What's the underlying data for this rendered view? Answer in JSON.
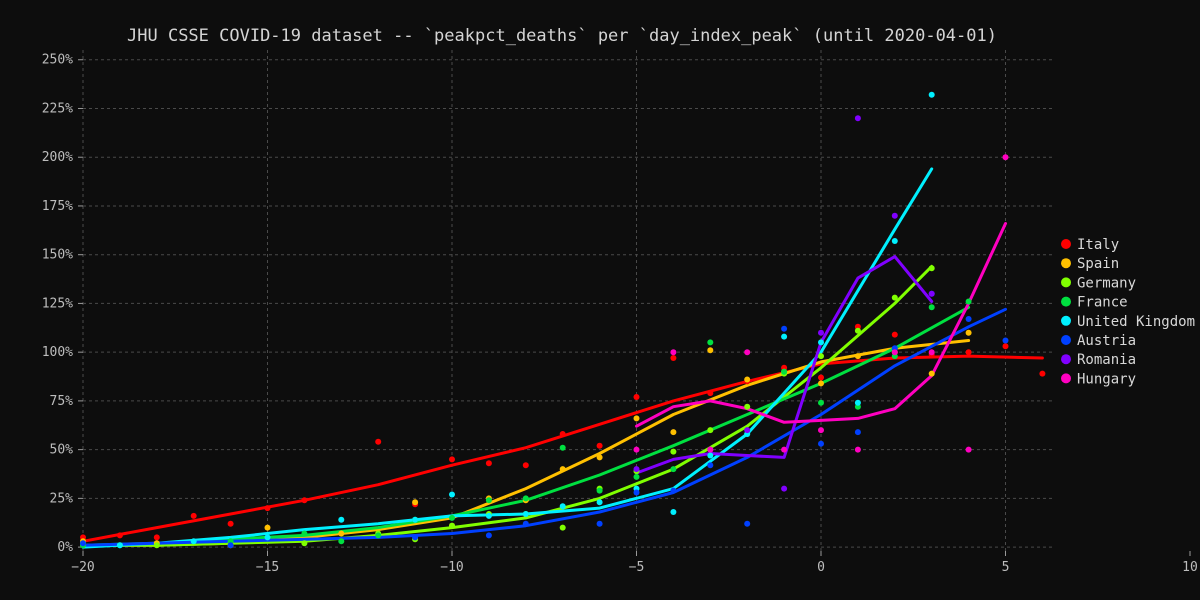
{
  "chart_data": {
    "type": "scatter",
    "title": "JHU CSSE COVID-19 dataset -- `peakpct_deaths` per `day_index_peak` (until 2020-04-01)",
    "xlabel": "",
    "ylabel": "",
    "xlim": [
      -20,
      10
    ],
    "ylim": [
      -2,
      255
    ],
    "x_ticks": [
      -20,
      -15,
      -10,
      -5,
      0,
      5,
      10
    ],
    "x_tick_labels": [
      "−20",
      "−15",
      "−10",
      "−5",
      "0",
      "5",
      "10"
    ],
    "y_ticks": [
      0,
      25,
      50,
      75,
      100,
      125,
      150,
      175,
      200,
      225,
      250
    ],
    "y_tick_labels": [
      "0%",
      "25%",
      "50%",
      "75%",
      "100%",
      "125%",
      "150%",
      "175%",
      "200%",
      "225%",
      "250%"
    ],
    "grid": true,
    "legend_position": "right",
    "series": [
      {
        "name": "Italy",
        "color": "#ff0000",
        "points": [
          [
            -20,
            5
          ],
          [
            -19,
            6
          ],
          [
            -18,
            5
          ],
          [
            -17,
            16
          ],
          [
            -16,
            12
          ],
          [
            -15,
            20
          ],
          [
            -14,
            24
          ],
          [
            -12,
            54
          ],
          [
            -11,
            22
          ],
          [
            -10,
            45
          ],
          [
            -9,
            43
          ],
          [
            -8,
            42
          ],
          [
            -7,
            58
          ],
          [
            -6,
            52
          ],
          [
            -5,
            77
          ],
          [
            -4,
            97
          ],
          [
            -3,
            79
          ],
          [
            -2,
            85
          ],
          [
            -1,
            92
          ],
          [
            0,
            87
          ],
          [
            1,
            113
          ],
          [
            2,
            109
          ],
          [
            3,
            99
          ],
          [
            4,
            100
          ],
          [
            5,
            103
          ],
          [
            6,
            89
          ]
        ],
        "trend": [
          [
            -20,
            3
          ],
          [
            -18,
            10
          ],
          [
            -16,
            17
          ],
          [
            -14,
            24
          ],
          [
            -12,
            32
          ],
          [
            -10,
            42
          ],
          [
            -8,
            51
          ],
          [
            -6,
            63
          ],
          [
            -4,
            75
          ],
          [
            -2,
            85
          ],
          [
            0,
            94
          ],
          [
            2,
            97
          ],
          [
            4,
            98
          ],
          [
            6,
            97
          ]
        ]
      },
      {
        "name": "Spain",
        "color": "#ffc000",
        "points": [
          [
            -20,
            3
          ],
          [
            -18,
            2
          ],
          [
            -16,
            1
          ],
          [
            -15,
            10
          ],
          [
            -13,
            7
          ],
          [
            -11,
            23
          ],
          [
            -10,
            11
          ],
          [
            -9,
            25
          ],
          [
            -8,
            24
          ],
          [
            -7,
            40
          ],
          [
            -6,
            46
          ],
          [
            -5,
            66
          ],
          [
            -4,
            59
          ],
          [
            -3,
            101
          ],
          [
            -2,
            86
          ],
          [
            -1,
            90
          ],
          [
            0,
            84
          ],
          [
            1,
            98
          ],
          [
            2,
            100
          ],
          [
            3,
            89
          ],
          [
            4,
            110
          ]
        ],
        "trend": [
          [
            -20,
            1
          ],
          [
            -18,
            1
          ],
          [
            -16,
            2
          ],
          [
            -14,
            5
          ],
          [
            -12,
            9
          ],
          [
            -10,
            15
          ],
          [
            -8,
            30
          ],
          [
            -6,
            48
          ],
          [
            -4,
            68
          ],
          [
            -2,
            83
          ],
          [
            0,
            95
          ],
          [
            2,
            102
          ],
          [
            4,
            106
          ]
        ]
      },
      {
        "name": "Germany",
        "color": "#80ff00",
        "points": [
          [
            -20,
            2
          ],
          [
            -18,
            1
          ],
          [
            -16,
            2
          ],
          [
            -14,
            2
          ],
          [
            -12,
            7
          ],
          [
            -11,
            4
          ],
          [
            -10,
            11
          ],
          [
            -9,
            17
          ],
          [
            -8,
            17
          ],
          [
            -7,
            10
          ],
          [
            -6,
            30
          ],
          [
            -5,
            39
          ],
          [
            -4,
            49
          ],
          [
            -3,
            60
          ],
          [
            -2,
            72
          ],
          [
            -1,
            89
          ],
          [
            0,
            98
          ],
          [
            1,
            111
          ],
          [
            2,
            128
          ],
          [
            3,
            143
          ]
        ],
        "trend": [
          [
            -20,
            1
          ],
          [
            -18,
            1
          ],
          [
            -16,
            2
          ],
          [
            -14,
            3
          ],
          [
            -12,
            6
          ],
          [
            -10,
            10
          ],
          [
            -8,
            15
          ],
          [
            -6,
            25
          ],
          [
            -4,
            40
          ],
          [
            -2,
            62
          ],
          [
            0,
            92
          ],
          [
            2,
            125
          ],
          [
            3,
            144
          ]
        ]
      },
      {
        "name": "France",
        "color": "#00e040",
        "points": [
          [
            -20,
            1
          ],
          [
            -19,
            1
          ],
          [
            -16,
            3
          ],
          [
            -14,
            7
          ],
          [
            -13,
            3
          ],
          [
            -12,
            6
          ],
          [
            -11,
            14
          ],
          [
            -10,
            15
          ],
          [
            -9,
            24
          ],
          [
            -8,
            25
          ],
          [
            -7,
            51
          ],
          [
            -6,
            29
          ],
          [
            -5,
            36
          ],
          [
            -4,
            40
          ],
          [
            -3,
            105
          ],
          [
            -2,
            58
          ],
          [
            -1,
            90
          ],
          [
            0,
            74
          ],
          [
            1,
            72
          ],
          [
            2,
            98
          ],
          [
            3,
            123
          ],
          [
            4,
            126
          ]
        ],
        "trend": [
          [
            -20,
            1
          ],
          [
            -18,
            2
          ],
          [
            -16,
            4
          ],
          [
            -14,
            6
          ],
          [
            -12,
            10
          ],
          [
            -10,
            16
          ],
          [
            -8,
            24
          ],
          [
            -6,
            37
          ],
          [
            -4,
            52
          ],
          [
            -2,
            68
          ],
          [
            0,
            84
          ],
          [
            2,
            102
          ],
          [
            4,
            123
          ]
        ]
      },
      {
        "name": "United Kingdom",
        "color": "#00f0ff",
        "points": [
          [
            -19,
            1
          ],
          [
            -17,
            3
          ],
          [
            -15,
            5
          ],
          [
            -13,
            14
          ],
          [
            -11,
            14
          ],
          [
            -10,
            27
          ],
          [
            -9,
            16
          ],
          [
            -8,
            17
          ],
          [
            -7,
            21
          ],
          [
            -6,
            23
          ],
          [
            -5,
            30
          ],
          [
            -4,
            18
          ],
          [
            -3,
            47
          ],
          [
            -2,
            58
          ],
          [
            -1,
            108
          ],
          [
            0,
            105
          ],
          [
            1,
            74
          ],
          [
            2,
            157
          ],
          [
            3,
            232
          ]
        ],
        "trend": [
          [
            -20,
            0
          ],
          [
            -18,
            2
          ],
          [
            -16,
            5
          ],
          [
            -14,
            9
          ],
          [
            -12,
            12
          ],
          [
            -10,
            16
          ],
          [
            -8,
            17
          ],
          [
            -6,
            20
          ],
          [
            -4,
            30
          ],
          [
            -2,
            58
          ],
          [
            0,
            100
          ],
          [
            2,
            163
          ],
          [
            3,
            194
          ]
        ]
      },
      {
        "name": "Austria",
        "color": "#0040ff",
        "points": [
          [
            -20,
            2
          ],
          [
            -16,
            1
          ],
          [
            -11,
            5
          ],
          [
            -9,
            6
          ],
          [
            -8,
            12
          ],
          [
            -6,
            12
          ],
          [
            -5,
            28
          ],
          [
            -4,
            29
          ],
          [
            -3,
            42
          ],
          [
            -2,
            12
          ],
          [
            -1,
            112
          ],
          [
            0,
            53
          ],
          [
            1,
            59
          ],
          [
            2,
            102
          ],
          [
            3,
            130
          ],
          [
            4,
            117
          ],
          [
            5,
            106
          ]
        ],
        "trend": [
          [
            -20,
            1
          ],
          [
            -16,
            3
          ],
          [
            -12,
            5
          ],
          [
            -10,
            7
          ],
          [
            -8,
            11
          ],
          [
            -6,
            18
          ],
          [
            -4,
            28
          ],
          [
            -2,
            46
          ],
          [
            0,
            68
          ],
          [
            2,
            93
          ],
          [
            4,
            113
          ],
          [
            5,
            122
          ]
        ]
      },
      {
        "name": "Romania",
        "color": "#8000ff",
        "points": [
          [
            -5,
            40
          ],
          [
            -3,
            50
          ],
          [
            -2,
            60
          ],
          [
            -1,
            30
          ],
          [
            0,
            110
          ],
          [
            1,
            220
          ],
          [
            2,
            170
          ],
          [
            3,
            130
          ]
        ],
        "trend": [
          [
            -5,
            38
          ],
          [
            -4,
            45
          ],
          [
            -3,
            48
          ],
          [
            -2,
            47
          ],
          [
            -1,
            46
          ],
          [
            0,
            105
          ],
          [
            1,
            138
          ],
          [
            2,
            149
          ],
          [
            3,
            126
          ]
        ]
      },
      {
        "name": "Hungary",
        "color": "#ff00c0",
        "points": [
          [
            -5,
            50
          ],
          [
            -4,
            100
          ],
          [
            -3,
            50
          ],
          [
            -2,
            100
          ],
          [
            -1,
            50
          ],
          [
            0,
            60
          ],
          [
            1,
            50
          ],
          [
            2,
            100
          ],
          [
            3,
            100
          ],
          [
            4,
            50
          ],
          [
            5,
            200
          ]
        ],
        "trend": [
          [
            -5,
            62
          ],
          [
            -4,
            72
          ],
          [
            -3,
            75
          ],
          [
            -2,
            71
          ],
          [
            -1,
            64
          ],
          [
            0,
            65
          ],
          [
            1,
            66
          ],
          [
            2,
            71
          ],
          [
            3,
            88
          ],
          [
            4,
            125
          ],
          [
            5,
            166
          ]
        ]
      }
    ]
  }
}
